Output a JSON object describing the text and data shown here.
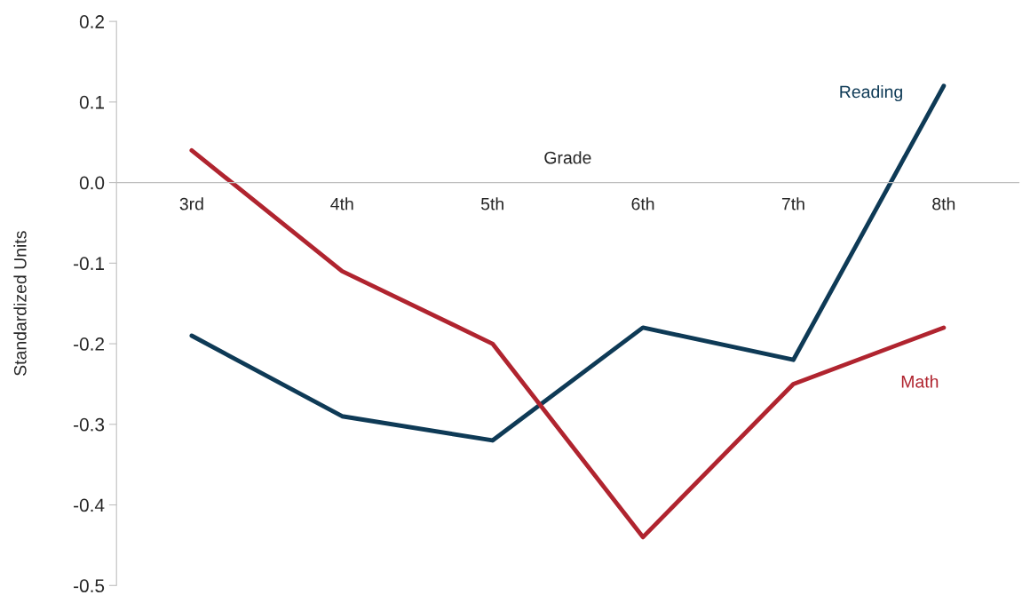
{
  "chart_data": {
    "type": "line",
    "xlabel": "Grade",
    "ylabel": "Standardized Units",
    "categories": [
      "3rd",
      "4th",
      "5th",
      "6th",
      "7th",
      "8th"
    ],
    "series": [
      {
        "name": "Reading",
        "color": "#0e3a56",
        "values": [
          -0.19,
          -0.29,
          -0.32,
          -0.18,
          -0.22,
          0.12
        ]
      },
      {
        "name": "Math",
        "color": "#b0242f",
        "values": [
          0.04,
          -0.11,
          -0.2,
          -0.44,
          -0.25,
          -0.18
        ]
      }
    ],
    "ylim": [
      -0.5,
      0.2
    ],
    "yticks": [
      {
        "value": -0.5,
        "label": "-0.5"
      },
      {
        "value": -0.4,
        "label": "-0.4"
      },
      {
        "value": -0.3,
        "label": "-0.3"
      },
      {
        "value": -0.2,
        "label": "-0.2"
      },
      {
        "value": -0.1,
        "label": "-0.1"
      },
      {
        "value": 0,
        "label": "0.0"
      },
      {
        "value": 0.1,
        "label": "0.1"
      },
      {
        "value": 0.2,
        "label": "0.2"
      }
    ],
    "grid": false,
    "legend": false,
    "marker": "none",
    "line_style": "solid"
  }
}
